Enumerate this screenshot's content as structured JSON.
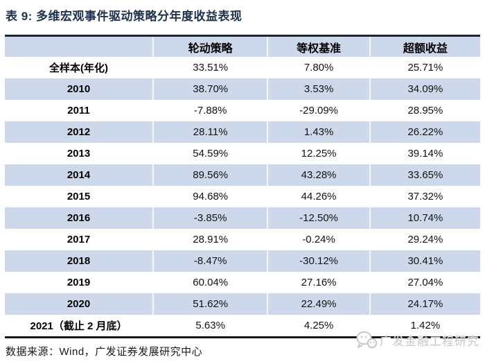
{
  "title": "表 9: 多维宏观事件驱动策略分年度收益表现",
  "chart_data": {
    "type": "table",
    "title": "表 9: 多维宏观事件驱动策略分年度收益表现",
    "columns": [
      "",
      "轮动策略",
      "等权基准",
      "超额收益"
    ],
    "rows": [
      {
        "label": "全样本(年化)",
        "values": [
          "33.51%",
          "7.80%",
          "25.71%"
        ]
      },
      {
        "label": "2010",
        "values": [
          "38.70%",
          "3.53%",
          "34.09%"
        ]
      },
      {
        "label": "2011",
        "values": [
          "-7.88%",
          "-29.09%",
          "28.95%"
        ]
      },
      {
        "label": "2012",
        "values": [
          "28.11%",
          "1.43%",
          "26.22%"
        ]
      },
      {
        "label": "2013",
        "values": [
          "54.59%",
          "12.25%",
          "39.14%"
        ]
      },
      {
        "label": "2014",
        "values": [
          "89.56%",
          "43.28%",
          "33.65%"
        ]
      },
      {
        "label": "2015",
        "values": [
          "94.68%",
          "44.26%",
          "37.32%"
        ]
      },
      {
        "label": "2016",
        "values": [
          "-3.85%",
          "-12.50%",
          "10.74%"
        ]
      },
      {
        "label": "2017",
        "values": [
          "28.91%",
          "-0.24%",
          "29.24%"
        ]
      },
      {
        "label": "2018",
        "values": [
          "-8.47%",
          "-30.12%",
          "30.41%"
        ]
      },
      {
        "label": "2019",
        "values": [
          "60.04%",
          "27.16%",
          "27.04%"
        ]
      },
      {
        "label": "2020",
        "values": [
          "51.62%",
          "22.49%",
          "24.17%"
        ]
      },
      {
        "label": "2021（截止 2 月底）",
        "values": [
          "5.63%",
          "4.25%",
          "1.42%"
        ]
      }
    ],
    "layout": {
      "stripe_even_rows": true,
      "first_column_bold": true,
      "values_align": "center"
    }
  },
  "footer": {
    "source_label": "数据来源：Wind，广发证券发展研究中心"
  },
  "watermark": {
    "label": "广发金融工程研究",
    "icon": "wechat-account-icon"
  },
  "colors": {
    "title_navy": "#1d3150",
    "stripe_blue": "#cdd9ea",
    "header_blue": "#cdd9ea",
    "rule_top": "#1c2633",
    "rule_bottom": "#141414",
    "watermark_gray": "#c7c7c7",
    "text_black": "#111111"
  }
}
